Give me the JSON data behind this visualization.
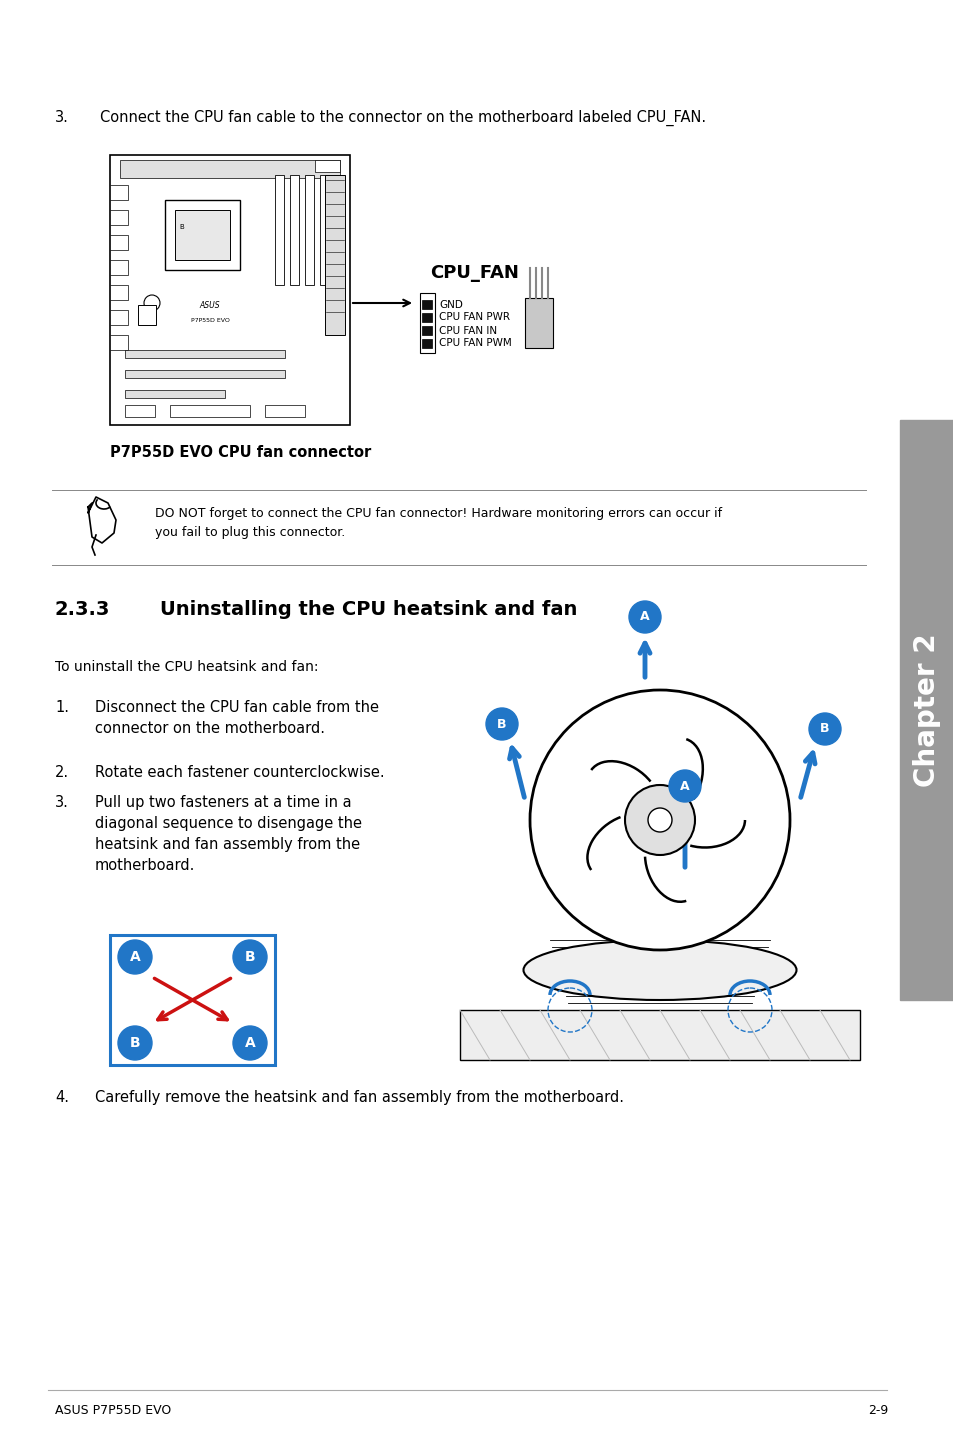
{
  "page_background": "#ffffff",
  "sidebar_color": "#999999",
  "sidebar_text": "Chapter 2",
  "footer_left": "ASUS P7P55D EVO",
  "footer_right": "2-9",
  "step3_text": "3.    Connect the CPU fan cable to the connector on the motherboard labeled CPU_FAN.",
  "cpu_fan_label": "CPU_FAN",
  "pin_labels": [
    "GND",
    "CPU FAN PWR",
    "CPU FAN IN",
    "CPU FAN PWM"
  ],
  "caption": "P7P55D EVO CPU fan connector",
  "note_text": "DO NOT forget to connect the CPU fan connector! Hardware monitoring errors can occur if\nyou fail to plug this connector.",
  "section_number": "2.3.3",
  "section_title": "Uninstalling the CPU heatsink and fan",
  "intro_text": "To uninstall the CPU heatsink and fan:",
  "step1": "Disconnect the CPU fan cable from the\nconnector on the motherboard.",
  "step2": "Rotate each fastener counterclockwise.",
  "step3b": "Pull up two fasteners at a time in a\ndiagonal sequence to disengage the\nheatsink and fan assembly from the\nmotherboard.",
  "step4_text": "4.    Carefully remove the heatsink and fan assembly from the motherboard.",
  "blue_color": "#2176c7",
  "red_color": "#cc1111",
  "text_color": "#000000",
  "gray_line": "#999999"
}
